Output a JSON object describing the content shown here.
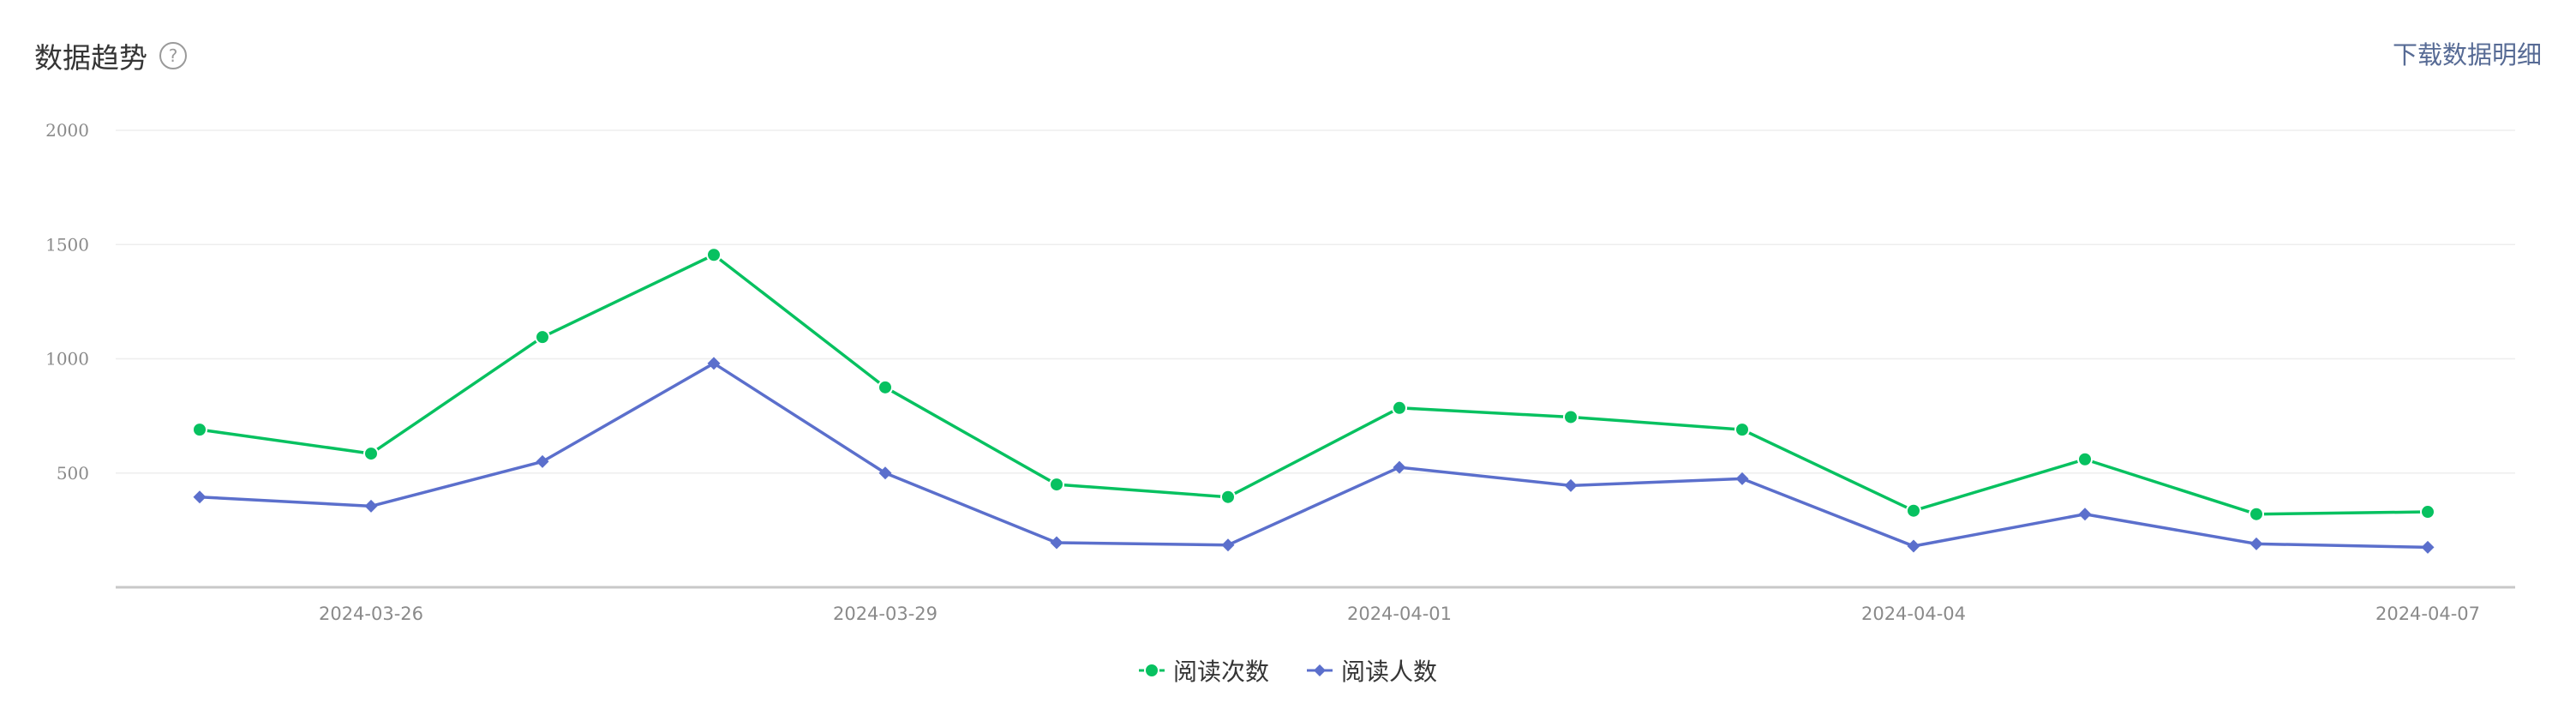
{
  "header": {
    "title": "数据趋势",
    "help_icon": "question-circle-icon",
    "download_label": "下载数据明细"
  },
  "colors": {
    "series_reads": "#07c160",
    "series_readers": "#5b6fcc",
    "grid": "#eeeeee",
    "axis": "#c8c8c8",
    "link": "#576b95"
  },
  "chart_data": {
    "type": "line",
    "x": [
      "2024-03-25",
      "2024-03-26",
      "2024-03-27",
      "2024-03-28",
      "2024-03-29",
      "2024-03-30",
      "2024-03-31",
      "2024-04-01",
      "2024-04-02",
      "2024-04-03",
      "2024-04-04",
      "2024-04-05",
      "2024-04-06",
      "2024-04-07"
    ],
    "x_tick_labels": [
      "2024-03-26",
      "2024-03-29",
      "2024-04-01",
      "2024-04-04",
      "2024-04-07"
    ],
    "y_ticks": [
      500,
      1000,
      1500,
      2000
    ],
    "ylim": [
      0,
      2000
    ],
    "grid": true,
    "legend_position": "bottom-center",
    "series": [
      {
        "name": "阅读次数",
        "marker": "circle",
        "color": "#07c160",
        "values": [
          690,
          585,
          1095,
          1455,
          875,
          450,
          395,
          785,
          745,
          690,
          335,
          560,
          320,
          330
        ]
      },
      {
        "name": "阅读人数",
        "marker": "diamond",
        "color": "#5b6fcc",
        "values": [
          395,
          355,
          550,
          980,
          500,
          195,
          185,
          525,
          445,
          475,
          180,
          320,
          190,
          175
        ]
      }
    ]
  }
}
